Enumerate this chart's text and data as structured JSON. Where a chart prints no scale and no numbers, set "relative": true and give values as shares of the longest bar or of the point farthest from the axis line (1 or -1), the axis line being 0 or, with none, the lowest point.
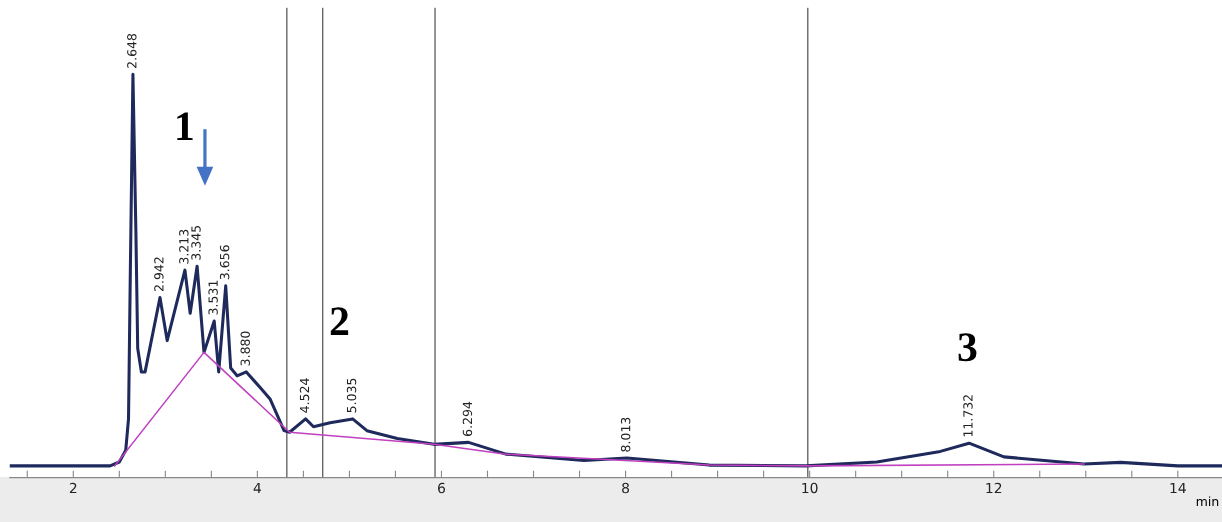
{
  "chart_data": {
    "type": "line",
    "relative": true,
    "xlabel": "min",
    "xlim": [
      1.31,
      14.48
    ],
    "xticks": [
      {
        "value": 1.5,
        "label": null
      },
      2,
      {
        "value": 2.5,
        "label": null
      },
      {
        "value": 3,
        "label": null
      },
      {
        "value": 3.5,
        "label": null
      },
      4,
      {
        "value": 4.5,
        "label": null
      },
      {
        "value": 5,
        "label": null
      },
      {
        "value": 5.5,
        "label": null
      },
      6,
      {
        "value": 6.5,
        "label": null
      },
      {
        "value": 7,
        "label": null
      },
      {
        "value": 7.5,
        "label": null
      },
      8,
      {
        "value": 8.5,
        "label": null
      },
      {
        "value": 9,
        "label": null
      },
      {
        "value": 9.5,
        "label": null
      },
      10,
      {
        "value": 10.5,
        "label": null
      },
      {
        "value": 11,
        "label": null
      },
      {
        "value": 11.5,
        "label": null
      },
      12,
      {
        "value": 12.5,
        "label": null
      },
      {
        "value": 13,
        "label": null
      },
      {
        "value": 13.5,
        "label": null
      },
      14
    ],
    "grid": false,
    "marker": "none",
    "line_style": "solid",
    "series": [
      {
        "color": "#1f2a5c",
        "x": [
          1.31,
          2.4,
          2.5,
          2.57,
          2.6,
          2.62,
          2.648,
          2.68,
          2.7,
          2.74,
          2.78,
          2.942,
          3.02,
          3.213,
          3.27,
          3.345,
          3.42,
          3.531,
          3.58,
          3.656,
          3.71,
          3.78,
          3.88,
          4.03,
          4.14,
          4.29,
          4.35,
          4.524,
          4.61,
          4.79,
          5.035,
          5.19,
          5.52,
          5.92,
          6.294,
          6.7,
          7.55,
          8.013,
          8.91,
          9.96,
          10.73,
          11.42,
          11.732,
          12.11,
          12.98,
          13.38,
          14.0,
          14.48
        ],
        "values": [
          0,
          0,
          0.01,
          0.04,
          0.12,
          0.5,
          1.0,
          0.6,
          0.3,
          0.24,
          0.24,
          0.43,
          0.32,
          0.5,
          0.39,
          0.51,
          0.29,
          0.37,
          0.24,
          0.46,
          0.25,
          0.23,
          0.24,
          0.2,
          0.17,
          0.09,
          0.086,
          0.12,
          0.1,
          0.11,
          0.12,
          0.09,
          0.07,
          0.055,
          0.06,
          0.03,
          0.014,
          0.02,
          0.002,
          0,
          0.01,
          0.037,
          0.058,
          0.023,
          0.005,
          0.009,
          0,
          0
        ]
      },
      {
        "color": "#c040c0",
        "x": [
          2.45,
          3.42,
          4.35,
          5.92,
          6.7,
          8.91,
          10.0,
          12.98
        ],
        "values": [
          0.0,
          0.29,
          0.086,
          0.055,
          0.03,
          0.002,
          0,
          0.005
        ]
      }
    ],
    "ref_lines": [
      {
        "axis": "x",
        "value": 4.32,
        "color": "#555555"
      },
      {
        "axis": "x",
        "value": 4.71,
        "color": "#555555"
      },
      {
        "axis": "x",
        "value": 5.93,
        "color": "#555555"
      },
      {
        "axis": "x",
        "value": 9.98,
        "color": "#555555"
      }
    ],
    "annotations": [
      {
        "text": "2.648",
        "x": 2.648,
        "y": 1.0
      },
      {
        "text": "2.942",
        "x": 2.942,
        "y": 0.43
      },
      {
        "text": "3.213",
        "x": 3.213,
        "y": 0.5
      },
      {
        "text": "3.345",
        "x": 3.345,
        "y": 0.51
      },
      {
        "text": "3.531",
        "x": 3.531,
        "y": 0.37
      },
      {
        "text": "3.656",
        "x": 3.656,
        "y": 0.46
      },
      {
        "text": "3.880",
        "x": 3.88,
        "y": 0.24
      },
      {
        "text": "4.524",
        "x": 4.524,
        "y": 0.12
      },
      {
        "text": "5.035",
        "x": 5.035,
        "y": 0.12
      },
      {
        "text": "6.294",
        "x": 6.294,
        "y": 0.06
      },
      {
        "text": "8.013",
        "x": 8.013,
        "y": 0.02
      },
      {
        "text": "11.732",
        "x": 11.732,
        "y": 0.058
      },
      "1",
      "2",
      "3"
    ]
  }
}
